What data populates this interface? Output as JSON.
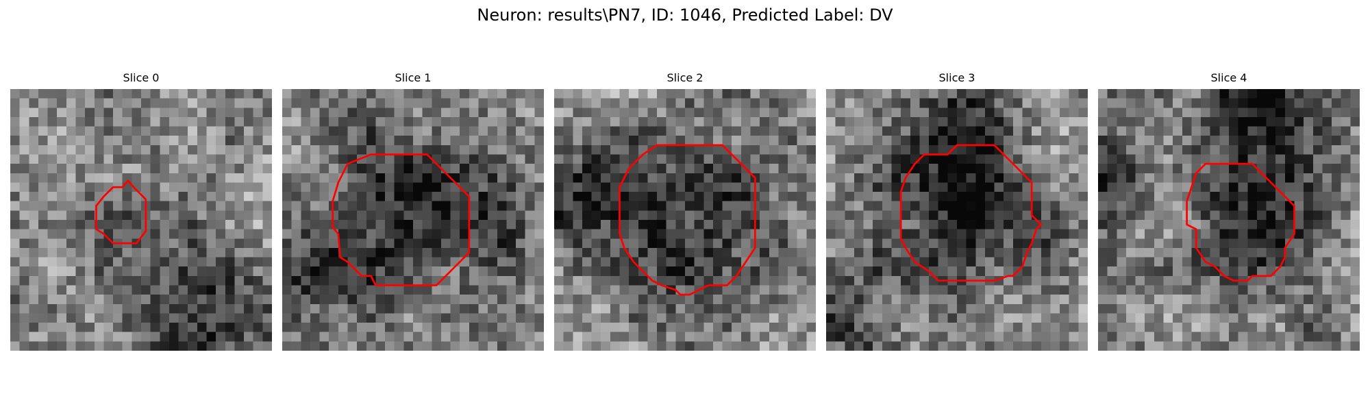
{
  "figure": {
    "title": "Neuron: results\\PN7, ID: 1046, Predicted Label: DV"
  },
  "contour_color": "#ff0000",
  "grid_size": 28,
  "panels": [
    {
      "title": "Slice 0",
      "contour": [
        [
          10.0,
          11.5
        ],
        [
          11.0,
          10.5
        ],
        [
          12.0,
          10.5
        ],
        [
          12.6,
          9.8
        ],
        [
          13.2,
          10.5
        ],
        [
          14.5,
          11.8
        ],
        [
          14.5,
          15.2
        ],
        [
          13.5,
          16.5
        ],
        [
          11.0,
          16.5
        ],
        [
          10.0,
          15.5
        ],
        [
          9.2,
          15.0
        ],
        [
          9.2,
          12.5
        ]
      ],
      "blobs": [
        {
          "cx": 12.0,
          "cy": 13.5,
          "r": 3.0,
          "d": -0.2
        },
        {
          "cx": 20.0,
          "cy": 24.5,
          "r": 5.0,
          "d": -0.45
        },
        {
          "cx": 2.0,
          "cy": 23.0,
          "r": 4.0,
          "d": -0.15
        }
      ]
    },
    {
      "title": "Slice 1",
      "contour": [
        [
          7.0,
          8.0
        ],
        [
          9.5,
          7.0
        ],
        [
          15.5,
          7.0
        ],
        [
          18.5,
          10.0
        ],
        [
          20.0,
          11.5
        ],
        [
          20.0,
          17.5
        ],
        [
          18.5,
          19.0
        ],
        [
          16.5,
          21.0
        ],
        [
          10.0,
          21.0
        ],
        [
          9.5,
          20.0
        ],
        [
          8.5,
          20.0
        ],
        [
          7.0,
          18.5
        ],
        [
          6.2,
          18.0
        ],
        [
          6.0,
          15.5
        ],
        [
          5.4,
          14.8
        ],
        [
          5.4,
          12.0
        ],
        [
          6.0,
          10.0
        ]
      ],
      "blobs": [
        {
          "cx": 13.0,
          "cy": 13.5,
          "r": 6.5,
          "d": -0.45
        },
        {
          "cx": 3.5,
          "cy": 20.5,
          "r": 3.0,
          "d": -0.3
        },
        {
          "cx": 24.0,
          "cy": 16.0,
          "r": 3.0,
          "d": -0.15
        }
      ]
    },
    {
      "title": "Slice 2",
      "contour": [
        [
          8.0,
          8.5
        ],
        [
          9.0,
          7.5
        ],
        [
          9.5,
          7.0
        ],
        [
          11.0,
          6.0
        ],
        [
          18.0,
          6.0
        ],
        [
          19.0,
          7.0
        ],
        [
          20.0,
          8.0
        ],
        [
          21.5,
          9.5
        ],
        [
          21.5,
          17.0
        ],
        [
          20.5,
          18.5
        ],
        [
          19.5,
          20.0
        ],
        [
          18.5,
          21.0
        ],
        [
          16.5,
          21.0
        ],
        [
          15.5,
          21.5
        ],
        [
          14.5,
          22.0
        ],
        [
          13.5,
          22.0
        ],
        [
          13.0,
          21.5
        ],
        [
          11.5,
          21.0
        ],
        [
          10.5,
          20.5
        ],
        [
          8.5,
          18.5
        ],
        [
          7.5,
          17.0
        ],
        [
          7.0,
          15.5
        ],
        [
          7.0,
          10.5
        ]
      ],
      "blobs": [
        {
          "cx": 14.5,
          "cy": 14.0,
          "r": 7.0,
          "d": -0.4
        },
        {
          "cx": 3.5,
          "cy": 12.5,
          "r": 3.0,
          "d": -0.25
        }
      ]
    },
    {
      "title": "Slice 3",
      "contour": [
        [
          8.5,
          9.5
        ],
        [
          9.5,
          8.0
        ],
        [
          10.5,
          7.0
        ],
        [
          13.0,
          7.0
        ],
        [
          14.0,
          6.0
        ],
        [
          18.0,
          6.0
        ],
        [
          19.5,
          7.5
        ],
        [
          22.0,
          10.0
        ],
        [
          22.0,
          13.5
        ],
        [
          23.0,
          14.5
        ],
        [
          22.5,
          15.0
        ],
        [
          22.0,
          16.5
        ],
        [
          21.5,
          17.5
        ],
        [
          21.0,
          19.0
        ],
        [
          20.0,
          20.0
        ],
        [
          19.5,
          20.0
        ],
        [
          18.0,
          20.5
        ],
        [
          12.0,
          20.5
        ],
        [
          11.0,
          19.5
        ],
        [
          9.5,
          18.5
        ],
        [
          8.5,
          17.0
        ],
        [
          8.0,
          16.0
        ],
        [
          8.0,
          11.0
        ]
      ],
      "blobs": [
        {
          "cx": 15.0,
          "cy": 13.5,
          "r": 6.5,
          "d": -0.45
        },
        {
          "cx": 15.0,
          "cy": 1.5,
          "r": 4.0,
          "d": -0.3
        },
        {
          "cx": 2.5,
          "cy": 25.5,
          "r": 3.0,
          "d": -0.3
        }
      ]
    },
    {
      "title": "Slice 4",
      "contour": [
        [
          10.5,
          9.0
        ],
        [
          11.5,
          8.0
        ],
        [
          16.5,
          8.0
        ],
        [
          18.5,
          10.0
        ],
        [
          21.0,
          12.5
        ],
        [
          21.0,
          15.5
        ],
        [
          20.0,
          17.0
        ],
        [
          20.0,
          18.0
        ],
        [
          19.5,
          19.0
        ],
        [
          18.5,
          20.0
        ],
        [
          16.5,
          20.0
        ],
        [
          16.0,
          20.5
        ],
        [
          14.5,
          20.5
        ],
        [
          13.5,
          20.0
        ],
        [
          12.5,
          19.0
        ],
        [
          11.5,
          18.5
        ],
        [
          10.5,
          17.0
        ],
        [
          10.5,
          15.0
        ],
        [
          9.5,
          14.5
        ],
        [
          9.5,
          12.0
        ]
      ],
      "blobs": [
        {
          "cx": 15.5,
          "cy": 15.5,
          "r": 4.5,
          "d": -0.4
        },
        {
          "cx": 17.5,
          "cy": 2.0,
          "r": 5.0,
          "d": -0.45
        },
        {
          "cx": 2.5,
          "cy": 10.0,
          "r": 2.5,
          "d": -0.35
        },
        {
          "cx": 24.0,
          "cy": 25.0,
          "r": 2.5,
          "d": -0.25
        }
      ]
    }
  ]
}
